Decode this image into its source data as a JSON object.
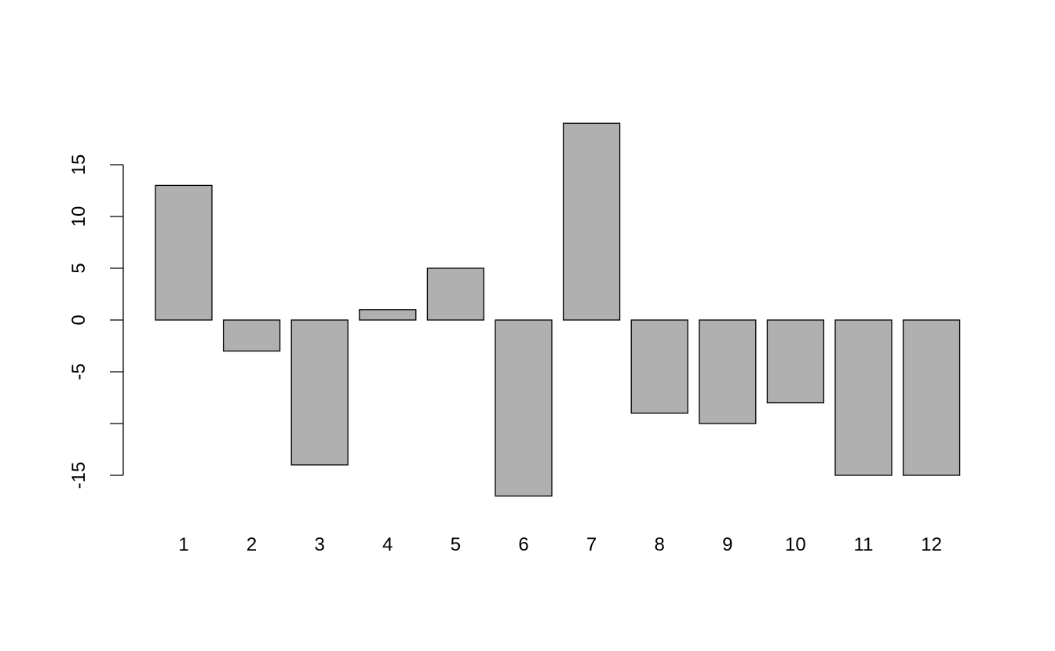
{
  "chart_data": {
    "type": "bar",
    "categories": [
      "1",
      "2",
      "3",
      "4",
      "5",
      "6",
      "7",
      "8",
      "9",
      "10",
      "11",
      "12"
    ],
    "values": [
      13,
      -3,
      -14,
      1,
      5,
      -17,
      19,
      -9,
      -10,
      -8,
      -15,
      -15
    ],
    "title": "",
    "xlabel": "",
    "ylabel": "",
    "ylim": [
      -17,
      19
    ],
    "y_ticks": [
      -15,
      -10,
      -5,
      0,
      5,
      10,
      15
    ],
    "y_tick_labels": [
      "-15",
      "",
      "-5",
      "0",
      "5",
      "10",
      "15"
    ],
    "grid": false,
    "bar_color": "#b0b0b0",
    "bar_border_color": "#000000"
  }
}
